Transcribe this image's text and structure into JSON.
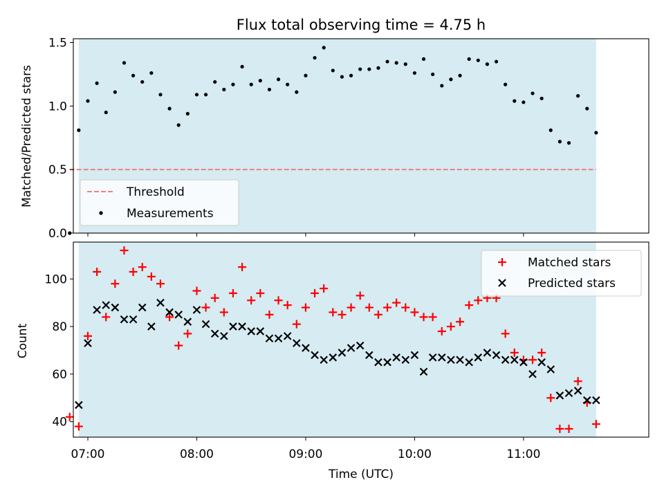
{
  "colors": {
    "background": "#ffffff",
    "shaded_window": "#add8e6",
    "threshold": "#f08080",
    "measurements": "#000000",
    "matched": "#ff0000",
    "predicted": "#000000"
  },
  "chart_data": [
    {
      "type": "scatter",
      "title": "Flux total observing time = 4.75 h",
      "xlabel": "",
      "ylabel": "Matched/Predicted stars",
      "xlim": [
        "06:52",
        "12:09"
      ],
      "ylim": [
        0,
        1.53
      ],
      "xticks": [
        "07:00",
        "08:00",
        "09:00",
        "10:00",
        "11:00"
      ],
      "yticks": [
        "0.0",
        "0.5",
        "1.0",
        "1.5"
      ],
      "shaded_span": [
        "06:55",
        "11:40"
      ],
      "legend_position": "lower-left",
      "threshold": {
        "name": "Threshold",
        "value": 0.5,
        "x_range": [
          "06:50",
          "11:40"
        ]
      },
      "series": [
        {
          "name": "Measurements",
          "marker": "dot",
          "x": [
            "06:50",
            "06:55",
            "07:00",
            "07:05",
            "07:10",
            "07:15",
            "07:20",
            "07:25",
            "07:30",
            "07:35",
            "07:40",
            "07:45",
            "07:50",
            "07:55",
            "08:00",
            "08:05",
            "08:10",
            "08:15",
            "08:20",
            "08:25",
            "08:30",
            "08:35",
            "08:40",
            "08:45",
            "08:50",
            "08:55",
            "09:00",
            "09:05",
            "09:10",
            "09:15",
            "09:20",
            "09:25",
            "09:30",
            "09:35",
            "09:40",
            "09:45",
            "09:50",
            "09:55",
            "10:00",
            "10:05",
            "10:10",
            "10:15",
            "10:20",
            "10:25",
            "10:30",
            "10:35",
            "10:40",
            "10:45",
            "10:50",
            "10:55",
            "11:00",
            "11:05",
            "11:10",
            "11:15",
            "11:20",
            "11:25",
            "11:30",
            "11:35",
            "11:40"
          ],
          "y": [
            0.0,
            0.81,
            1.04,
            1.18,
            0.95,
            1.11,
            1.34,
            1.24,
            1.19,
            1.26,
            1.09,
            0.98,
            0.85,
            0.94,
            1.09,
            1.09,
            1.19,
            1.13,
            1.17,
            1.31,
            1.17,
            1.2,
            1.13,
            1.21,
            1.17,
            1.11,
            1.24,
            1.38,
            1.46,
            1.28,
            1.23,
            1.24,
            1.29,
            1.29,
            1.3,
            1.35,
            1.34,
            1.33,
            1.26,
            1.37,
            1.25,
            1.16,
            1.21,
            1.24,
            1.37,
            1.36,
            1.33,
            1.35,
            1.17,
            1.04,
            1.03,
            1.1,
            1.06,
            0.81,
            0.72,
            0.71,
            1.08,
            0.98,
            0.79
          ]
        }
      ]
    },
    {
      "type": "scatter",
      "title": "",
      "xlabel": "Time (UTC)",
      "ylabel": "Count",
      "xlim": [
        "06:52",
        "12:09"
      ],
      "ylim": [
        33.5,
        115.5
      ],
      "xticks": [
        "07:00",
        "08:00",
        "09:00",
        "10:00",
        "11:00"
      ],
      "yticks": [
        "40",
        "60",
        "80",
        "100"
      ],
      "shaded_span": [
        "06:55",
        "11:40"
      ],
      "legend_position": "upper-right",
      "x": [
        "06:50",
        "06:55",
        "07:00",
        "07:05",
        "07:10",
        "07:15",
        "07:20",
        "07:25",
        "07:30",
        "07:35",
        "07:40",
        "07:45",
        "07:50",
        "07:55",
        "08:00",
        "08:05",
        "08:10",
        "08:15",
        "08:20",
        "08:25",
        "08:30",
        "08:35",
        "08:40",
        "08:45",
        "08:50",
        "08:55",
        "09:00",
        "09:05",
        "09:10",
        "09:15",
        "09:20",
        "09:25",
        "09:30",
        "09:35",
        "09:40",
        "09:45",
        "09:50",
        "09:55",
        "10:00",
        "10:05",
        "10:10",
        "10:15",
        "10:20",
        "10:25",
        "10:30",
        "10:35",
        "10:40",
        "10:45",
        "10:50",
        "10:55",
        "11:00",
        "11:05",
        "11:10",
        "11:15",
        "11:20",
        "11:25",
        "11:30",
        "11:35",
        "11:40"
      ],
      "series": [
        {
          "name": "Matched stars",
          "marker": "plus",
          "y": [
            42,
            38,
            76,
            103,
            84,
            98,
            112,
            103,
            105,
            101,
            98,
            84,
            72,
            77,
            95,
            88,
            92,
            86,
            94,
            105,
            91,
            94,
            85,
            91,
            89,
            81,
            88,
            94,
            96,
            86,
            85,
            88,
            93,
            88,
            85,
            88,
            90,
            88,
            86,
            84,
            84,
            78,
            80,
            82,
            89,
            91,
            92,
            92,
            77,
            69,
            66,
            66,
            69,
            50,
            37,
            37,
            57,
            48,
            39
          ]
        },
        {
          "name": "Predicted stars",
          "marker": "x",
          "y": [
            null,
            47,
            73,
            87,
            89,
            88,
            83,
            83,
            88,
            80,
            90,
            86,
            85,
            82,
            87,
            81,
            77,
            76,
            80,
            80,
            78,
            78,
            75,
            75,
            76,
            73,
            71,
            68,
            66,
            67,
            69,
            71,
            72,
            68,
            65,
            65,
            67,
            66,
            68,
            61,
            67,
            67,
            66,
            66,
            65,
            67,
            69,
            68,
            66,
            66,
            65,
            60,
            65,
            62,
            51,
            52,
            53,
            49,
            49
          ]
        }
      ]
    }
  ]
}
